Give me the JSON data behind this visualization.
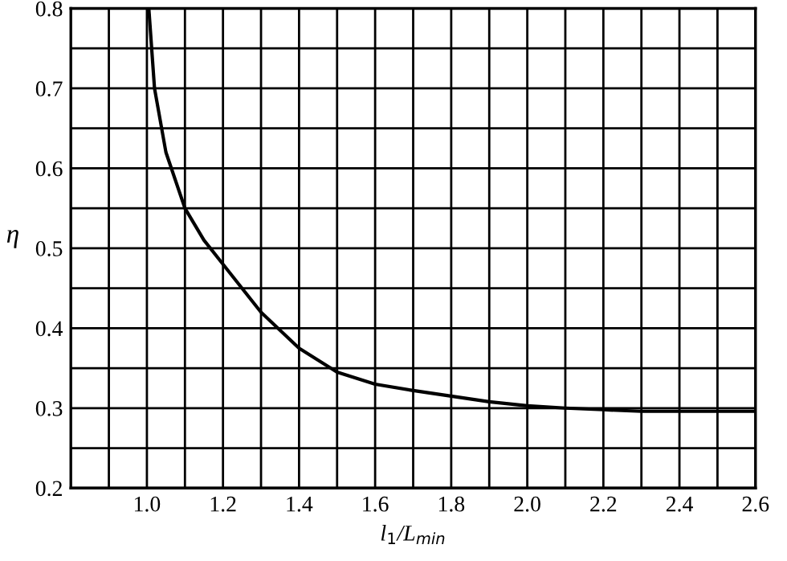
{
  "chart_data": {
    "type": "line",
    "xlabel": "l$_{1}$/L$_{min}$",
    "ylabel": "η",
    "x": [
      1.005,
      1.02,
      1.05,
      1.1,
      1.15,
      1.2,
      1.3,
      1.4,
      1.5,
      1.6,
      1.7,
      1.8,
      1.9,
      2.0,
      2.1,
      2.2,
      2.3,
      2.4,
      2.5,
      2.6
    ],
    "series": [
      {
        "color": "#000000",
        "values": [
          0.8,
          0.7,
          0.62,
          0.55,
          0.51,
          0.48,
          0.42,
          0.375,
          0.345,
          0.33,
          0.322,
          0.315,
          0.308,
          0.303,
          0.3,
          0.298,
          0.296,
          0.296,
          0.296,
          0.296
        ]
      }
    ],
    "xlim": [
      0.8,
      2.6
    ],
    "ylim": [
      0.2,
      0.8
    ],
    "xticks": [
      {
        "value": 0.9,
        "label": null
      },
      {
        "value": 1,
        "label": "1.0"
      },
      {
        "value": 1.1,
        "label": null
      },
      1.2,
      {
        "value": 1.3,
        "label": null
      },
      1.4,
      {
        "value": 1.5,
        "label": null
      },
      1.6,
      {
        "value": 1.7,
        "label": null
      },
      1.8,
      {
        "value": 1.9,
        "label": null
      },
      {
        "value": 2,
        "label": "2.0"
      },
      {
        "value": 2.1,
        "label": null
      },
      2.2,
      {
        "value": 2.3,
        "label": null
      },
      2.4,
      {
        "value": 2.5,
        "label": null
      },
      2.6
    ],
    "yticks": [
      0.2,
      {
        "value": 0.25,
        "label": null
      },
      0.3,
      {
        "value": 0.35,
        "label": null
      },
      0.4,
      {
        "value": 0.45,
        "label": null
      },
      0.5,
      {
        "value": 0.55,
        "label": null
      },
      0.6,
      {
        "value": 0.65,
        "label": null
      },
      0.7,
      {
        "value": 0.75,
        "label": null
      },
      0.8
    ],
    "grid": true,
    "marker": "none",
    "line_style": "solid"
  }
}
